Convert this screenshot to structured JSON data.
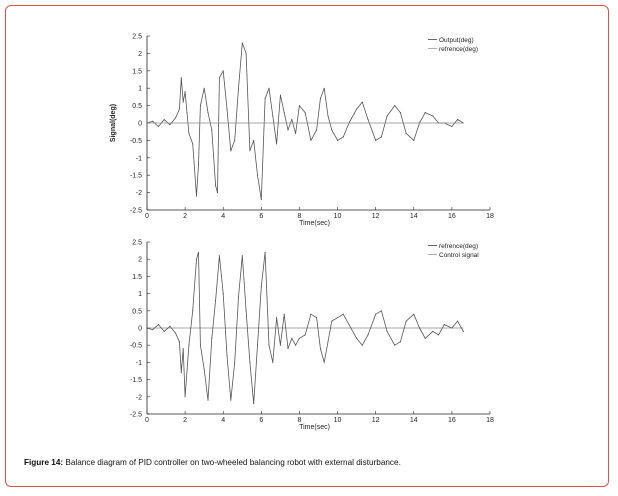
{
  "caption": {
    "label": "Figure 14:",
    "text": "Balance diagram of PID controller on two-wheeled balancing robot with external disturbance."
  },
  "chart_data": [
    {
      "type": "line",
      "ylabel": "Signal(deg)",
      "xlabel": "Time(sec)",
      "xlim": [
        0,
        18
      ],
      "ylim": [
        -2.5,
        2.5
      ],
      "xticks": [
        0,
        2,
        4,
        6,
        8,
        10,
        12,
        14,
        16,
        18
      ],
      "yticks": [
        -2.5,
        -2,
        -1.5,
        -1,
        -0.5,
        0,
        0.5,
        1,
        1.5,
        2,
        2.5
      ],
      "legend": [
        "Output(deg)",
        "refrence(deg)"
      ],
      "legend_position": "top-right",
      "series": [
        {
          "name": "Output(deg)",
          "x": [
            0,
            0.3,
            0.6,
            0.9,
            1.2,
            1.5,
            1.7,
            1.8,
            1.9,
            2.0,
            2.1,
            2.2,
            2.4,
            2.6,
            2.7,
            2.8,
            3.0,
            3.2,
            3.4,
            3.6,
            3.7,
            3.8,
            4.0,
            4.2,
            4.4,
            4.6,
            4.8,
            5.0,
            5.2,
            5.4,
            5.6,
            5.8,
            6.0,
            6.2,
            6.4,
            6.6,
            6.8,
            7.0,
            7.2,
            7.4,
            7.6,
            7.8,
            8.0,
            8.3,
            8.6,
            8.9,
            9.1,
            9.3,
            9.5,
            9.7,
            10.0,
            10.3,
            10.6,
            11.0,
            11.3,
            11.6,
            12.0,
            12.3,
            12.6,
            13.0,
            13.3,
            13.6,
            14.0,
            14.3,
            14.6,
            15.0,
            15.3,
            15.6,
            16.0,
            16.3,
            16.6
          ],
          "values": [
            0.0,
            0.05,
            -0.1,
            0.1,
            -0.05,
            0.15,
            0.4,
            1.3,
            0.6,
            0.9,
            0.3,
            -0.3,
            -0.6,
            -2.1,
            -1.2,
            0.5,
            1.0,
            0.3,
            -0.2,
            -1.8,
            -2.0,
            1.3,
            1.5,
            0.4,
            -0.8,
            -0.5,
            1.0,
            2.3,
            2.0,
            -0.8,
            -0.5,
            -1.5,
            -2.2,
            0.7,
            1.0,
            0.2,
            -0.6,
            0.8,
            0.3,
            -0.2,
            0.1,
            -0.3,
            0.5,
            0.3,
            -0.5,
            -0.2,
            0.7,
            1.0,
            0.2,
            -0.2,
            -0.5,
            -0.4,
            0.0,
            0.4,
            0.6,
            0.1,
            -0.5,
            -0.4,
            0.2,
            0.5,
            0.3,
            -0.3,
            -0.5,
            0.0,
            0.3,
            0.2,
            0.0,
            0.0,
            -0.1,
            0.1,
            0.0
          ]
        },
        {
          "name": "refrence(deg)",
          "x": [
            0,
            16.6
          ],
          "values": [
            0,
            0
          ]
        }
      ]
    },
    {
      "type": "line",
      "ylabel": "",
      "xlabel": "Time(sec)",
      "xlim": [
        0,
        18
      ],
      "ylim": [
        -2.5,
        2.5
      ],
      "xticks": [
        0,
        2,
        4,
        6,
        8,
        10,
        12,
        14,
        16,
        18
      ],
      "yticks": [
        -2.5,
        -2,
        -1.5,
        -1,
        -0.5,
        0,
        0.5,
        1,
        1.5,
        2,
        2.5
      ],
      "legend": [
        "refrence(deg)",
        "Control signal"
      ],
      "legend_position": "top-right",
      "series": [
        {
          "name": "refrence(deg)",
          "x": [
            0,
            16.6
          ],
          "values": [
            0,
            0
          ]
        },
        {
          "name": "Control signal",
          "x": [
            0,
            0.3,
            0.6,
            0.9,
            1.2,
            1.5,
            1.7,
            1.8,
            1.9,
            2.0,
            2.2,
            2.4,
            2.6,
            2.7,
            2.8,
            3.0,
            3.2,
            3.4,
            3.6,
            3.8,
            4.0,
            4.2,
            4.4,
            4.6,
            4.8,
            5.0,
            5.2,
            5.4,
            5.6,
            5.8,
            6.0,
            6.2,
            6.4,
            6.6,
            6.8,
            7.0,
            7.2,
            7.4,
            7.6,
            7.8,
            8.0,
            8.3,
            8.6,
            8.9,
            9.1,
            9.3,
            9.5,
            9.7,
            10.0,
            10.3,
            10.6,
            11.0,
            11.3,
            11.6,
            12.0,
            12.3,
            12.6,
            13.0,
            13.3,
            13.6,
            14.0,
            14.3,
            14.6,
            15.0,
            15.3,
            15.6,
            16.0,
            16.3,
            16.6
          ],
          "values": [
            0.0,
            -0.05,
            0.1,
            -0.1,
            0.05,
            -0.15,
            -0.4,
            -1.3,
            -0.6,
            -2.0,
            -0.5,
            0.5,
            2.0,
            2.2,
            -0.5,
            -1.2,
            -2.1,
            -0.3,
            0.8,
            2.1,
            1.0,
            -0.8,
            -2.1,
            -1.0,
            0.9,
            2.1,
            0.5,
            -1.0,
            -2.2,
            -0.5,
            1.2,
            2.2,
            -0.5,
            -1.0,
            0.3,
            -0.5,
            0.4,
            -0.6,
            -0.3,
            -0.5,
            -0.3,
            -0.2,
            0.4,
            0.3,
            -0.6,
            -1.0,
            -0.4,
            0.2,
            0.3,
            0.4,
            0.1,
            -0.3,
            -0.5,
            -0.2,
            0.4,
            0.5,
            -0.1,
            -0.5,
            -0.4,
            0.2,
            0.4,
            0.0,
            -0.3,
            -0.1,
            -0.2,
            0.1,
            0.0,
            0.2,
            -0.1
          ]
        }
      ]
    }
  ]
}
